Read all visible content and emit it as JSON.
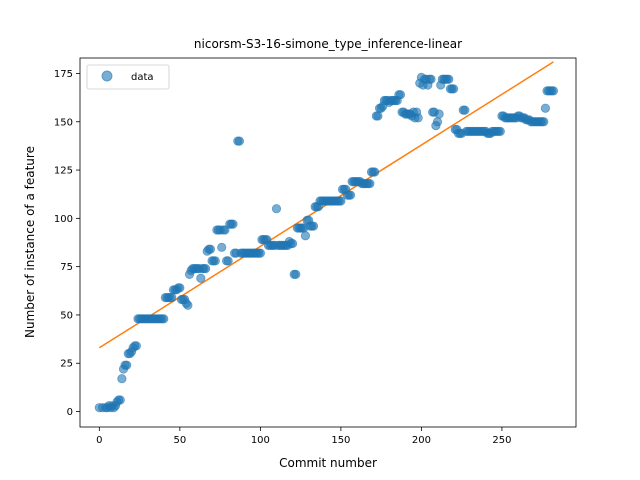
{
  "chart_data": {
    "type": "scatter",
    "title": "nicorsm-S3-16-simone_type_inference-linear",
    "xlabel": "Commit number",
    "ylabel": "Number of instance of a feature",
    "xlim": [
      -12,
      296
    ],
    "ylim": [
      -8,
      183
    ],
    "xticks": [
      0,
      50,
      100,
      150,
      200,
      250
    ],
    "yticks": [
      0,
      25,
      50,
      75,
      100,
      125,
      150,
      175
    ],
    "grid": false,
    "legend_position": "upper-left",
    "colors": {
      "data": "#1f77b4",
      "fit": "#ff7f0e"
    },
    "series": [
      {
        "name": "data",
        "kind": "scatter",
        "points": [
          [
            0,
            2
          ],
          [
            2,
            2
          ],
          [
            4,
            2
          ],
          [
            5,
            2
          ],
          [
            6,
            3
          ],
          [
            7,
            2
          ],
          [
            8,
            3
          ],
          [
            9,
            2
          ],
          [
            10,
            3
          ],
          [
            11,
            5
          ],
          [
            12,
            6
          ],
          [
            13,
            6
          ],
          [
            14,
            17
          ],
          [
            15,
            22
          ],
          [
            16,
            24
          ],
          [
            17,
            24
          ],
          [
            18,
            30
          ],
          [
            19,
            30
          ],
          [
            20,
            31
          ],
          [
            21,
            33
          ],
          [
            22,
            34
          ],
          [
            23,
            34
          ],
          [
            24,
            48
          ],
          [
            25,
            48
          ],
          [
            26,
            48
          ],
          [
            27,
            48
          ],
          [
            28,
            48
          ],
          [
            29,
            48
          ],
          [
            30,
            48
          ],
          [
            31,
            48
          ],
          [
            32,
            48
          ],
          [
            33,
            48
          ],
          [
            34,
            48
          ],
          [
            35,
            48
          ],
          [
            36,
            48
          ],
          [
            37,
            48
          ],
          [
            38,
            48
          ],
          [
            39,
            48
          ],
          [
            40,
            48
          ],
          [
            41,
            59
          ],
          [
            42,
            59
          ],
          [
            43,
            59
          ],
          [
            44,
            59
          ],
          [
            45,
            59
          ],
          [
            46,
            63
          ],
          [
            47,
            63
          ],
          [
            48,
            63
          ],
          [
            49,
            64
          ],
          [
            50,
            64
          ],
          [
            51,
            58
          ],
          [
            52,
            58
          ],
          [
            53,
            58
          ],
          [
            54,
            56
          ],
          [
            55,
            55
          ],
          [
            56,
            71
          ],
          [
            57,
            73
          ],
          [
            58,
            74
          ],
          [
            59,
            74
          ],
          [
            60,
            74
          ],
          [
            61,
            74
          ],
          [
            62,
            74
          ],
          [
            63,
            69
          ],
          [
            64,
            74
          ],
          [
            65,
            74
          ],
          [
            66,
            74
          ],
          [
            67,
            83
          ],
          [
            68,
            84
          ],
          [
            69,
            84
          ],
          [
            70,
            78
          ],
          [
            71,
            78
          ],
          [
            72,
            78
          ],
          [
            73,
            94
          ],
          [
            74,
            94
          ],
          [
            75,
            94
          ],
          [
            76,
            85
          ],
          [
            77,
            94
          ],
          [
            78,
            94
          ],
          [
            79,
            78
          ],
          [
            80,
            78
          ],
          [
            81,
            97
          ],
          [
            82,
            97
          ],
          [
            83,
            97
          ],
          [
            84,
            82
          ],
          [
            85,
            82
          ],
          [
            86,
            140
          ],
          [
            87,
            140
          ],
          [
            88,
            82
          ],
          [
            89,
            82
          ],
          [
            90,
            82
          ],
          [
            91,
            82
          ],
          [
            92,
            82
          ],
          [
            93,
            82
          ],
          [
            94,
            82
          ],
          [
            95,
            82
          ],
          [
            96,
            82
          ],
          [
            97,
            82
          ],
          [
            98,
            82
          ],
          [
            99,
            82
          ],
          [
            100,
            82
          ],
          [
            101,
            89
          ],
          [
            102,
            89
          ],
          [
            103,
            89
          ],
          [
            104,
            89
          ],
          [
            105,
            86
          ],
          [
            106,
            86
          ],
          [
            107,
            86
          ],
          [
            108,
            86
          ],
          [
            109,
            86
          ],
          [
            110,
            105
          ],
          [
            111,
            86
          ],
          [
            112,
            86
          ],
          [
            113,
            86
          ],
          [
            114,
            86
          ],
          [
            115,
            86
          ],
          [
            116,
            86
          ],
          [
            117,
            86
          ],
          [
            118,
            88
          ],
          [
            119,
            87
          ],
          [
            120,
            87
          ],
          [
            121,
            71
          ],
          [
            122,
            71
          ],
          [
            123,
            95
          ],
          [
            124,
            95
          ],
          [
            125,
            95
          ],
          [
            126,
            95
          ],
          [
            127,
            95
          ],
          [
            128,
            91
          ],
          [
            129,
            99
          ],
          [
            130,
            99
          ],
          [
            131,
            96
          ],
          [
            132,
            96
          ],
          [
            133,
            96
          ],
          [
            134,
            106
          ],
          [
            135,
            106
          ],
          [
            136,
            106
          ],
          [
            137,
            109
          ],
          [
            138,
            109
          ],
          [
            139,
            109
          ],
          [
            140,
            109
          ],
          [
            141,
            109
          ],
          [
            142,
            109
          ],
          [
            143,
            109
          ],
          [
            144,
            109
          ],
          [
            145,
            109
          ],
          [
            146,
            109
          ],
          [
            147,
            109
          ],
          [
            148,
            109
          ],
          [
            149,
            109
          ],
          [
            150,
            109
          ],
          [
            151,
            115
          ],
          [
            152,
            115
          ],
          [
            153,
            115
          ],
          [
            154,
            112
          ],
          [
            155,
            112
          ],
          [
            156,
            112
          ],
          [
            157,
            119
          ],
          [
            158,
            119
          ],
          [
            159,
            119
          ],
          [
            160,
            119
          ],
          [
            161,
            119
          ],
          [
            162,
            119
          ],
          [
            163,
            118
          ],
          [
            164,
            118
          ],
          [
            165,
            118
          ],
          [
            166,
            118
          ],
          [
            167,
            118
          ],
          [
            168,
            118
          ],
          [
            169,
            124
          ],
          [
            170,
            124
          ],
          [
            171,
            124
          ],
          [
            172,
            153
          ],
          [
            173,
            153
          ],
          [
            174,
            157
          ],
          [
            175,
            157
          ],
          [
            176,
            158
          ],
          [
            177,
            161
          ],
          [
            178,
            161
          ],
          [
            179,
            161
          ],
          [
            180,
            160
          ],
          [
            181,
            161
          ],
          [
            182,
            161
          ],
          [
            183,
            161
          ],
          [
            184,
            161
          ],
          [
            185,
            161
          ],
          [
            186,
            164
          ],
          [
            187,
            164
          ],
          [
            188,
            155
          ],
          [
            189,
            155
          ],
          [
            190,
            154
          ],
          [
            191,
            154
          ],
          [
            192,
            154
          ],
          [
            193,
            154
          ],
          [
            194,
            153
          ],
          [
            195,
            155
          ],
          [
            196,
            152
          ],
          [
            197,
            155
          ],
          [
            198,
            152
          ],
          [
            199,
            170
          ],
          [
            200,
            173
          ],
          [
            201,
            169
          ],
          [
            202,
            172
          ],
          [
            203,
            172
          ],
          [
            204,
            169
          ],
          [
            205,
            172
          ],
          [
            206,
            172
          ],
          [
            207,
            155
          ],
          [
            208,
            155
          ],
          [
            209,
            148
          ],
          [
            210,
            150
          ],
          [
            211,
            154
          ],
          [
            212,
            169
          ],
          [
            213,
            172
          ],
          [
            214,
            172
          ],
          [
            215,
            172
          ],
          [
            216,
            172
          ],
          [
            217,
            172
          ],
          [
            218,
            167
          ],
          [
            219,
            167
          ],
          [
            220,
            167
          ],
          [
            221,
            146
          ],
          [
            222,
            146
          ],
          [
            223,
            144
          ],
          [
            224,
            144
          ],
          [
            225,
            144
          ],
          [
            226,
            156
          ],
          [
            227,
            156
          ],
          [
            228,
            145
          ],
          [
            229,
            145
          ],
          [
            230,
            145
          ],
          [
            231,
            145
          ],
          [
            232,
            145
          ],
          [
            233,
            145
          ],
          [
            234,
            145
          ],
          [
            235,
            145
          ],
          [
            236,
            145
          ],
          [
            237,
            145
          ],
          [
            238,
            145
          ],
          [
            239,
            145
          ],
          [
            240,
            145
          ],
          [
            241,
            144
          ],
          [
            242,
            144
          ],
          [
            243,
            144
          ],
          [
            244,
            145
          ],
          [
            245,
            145
          ],
          [
            246,
            145
          ],
          [
            247,
            145
          ],
          [
            248,
            145
          ],
          [
            249,
            145
          ],
          [
            250,
            153
          ],
          [
            251,
            153
          ],
          [
            252,
            152
          ],
          [
            253,
            152
          ],
          [
            254,
            152
          ],
          [
            255,
            152
          ],
          [
            256,
            152
          ],
          [
            257,
            152
          ],
          [
            258,
            152
          ],
          [
            259,
            152
          ],
          [
            260,
            153
          ],
          [
            261,
            153
          ],
          [
            262,
            152
          ],
          [
            263,
            152
          ],
          [
            264,
            152
          ],
          [
            265,
            151
          ],
          [
            266,
            151
          ],
          [
            267,
            151
          ],
          [
            268,
            150
          ],
          [
            269,
            150
          ],
          [
            270,
            150
          ],
          [
            271,
            150
          ],
          [
            272,
            150
          ],
          [
            273,
            150
          ],
          [
            274,
            150
          ],
          [
            275,
            150
          ],
          [
            276,
            150
          ],
          [
            277,
            157
          ],
          [
            278,
            166
          ],
          [
            279,
            166
          ],
          [
            280,
            166
          ],
          [
            281,
            166
          ],
          [
            282,
            166
          ]
        ]
      },
      {
        "kind": "line",
        "points": [
          [
            0,
            33
          ],
          [
            282,
            181
          ]
        ]
      }
    ]
  }
}
